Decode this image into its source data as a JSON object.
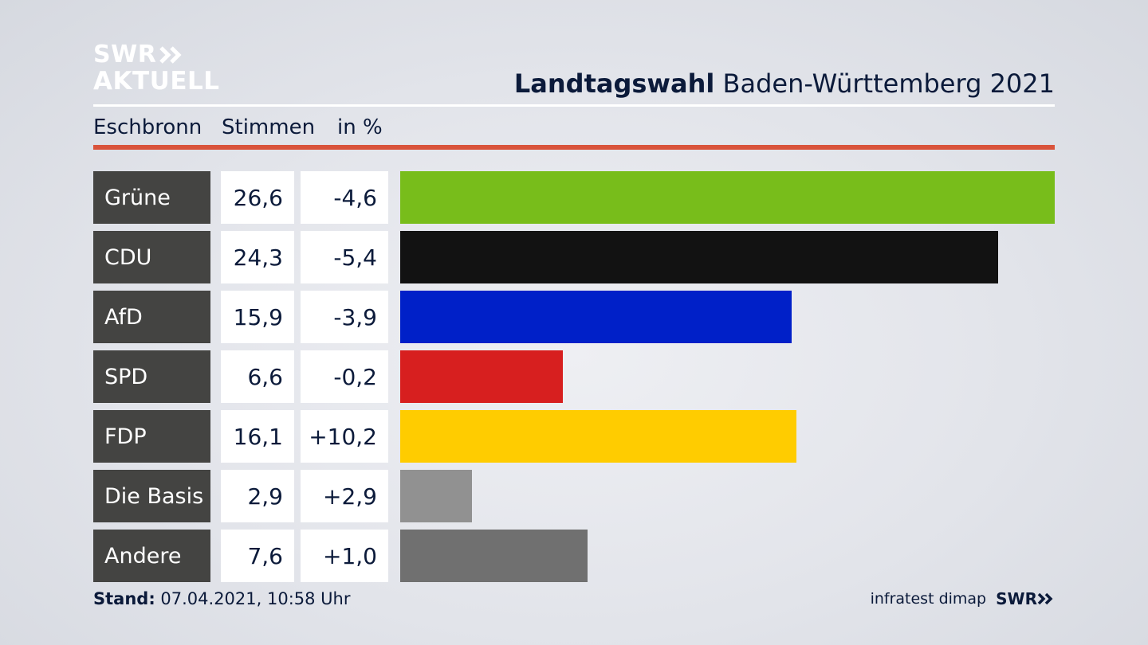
{
  "brand": {
    "line1": "SWR",
    "line2": "AKTUELL",
    "colors": {
      "logo": "#ffffff"
    }
  },
  "title": {
    "bold": "Landtagswahl",
    "rest": " Baden-Württemberg 2021"
  },
  "header": {
    "place": "Eschbronn",
    "votes": "Stimmen",
    "diff": "in %"
  },
  "chart_data": {
    "type": "bar",
    "categories": [
      "Grüne",
      "CDU",
      "AfD",
      "SPD",
      "FDP",
      "Die Basis",
      "Andere"
    ],
    "values": [
      26.6,
      24.3,
      15.9,
      6.6,
      16.1,
      2.9,
      7.6
    ],
    "value_labels": [
      "26,6",
      "24,3",
      "15,9",
      "6,6",
      "16,1",
      "2,9",
      "7,6"
    ],
    "diff_labels": [
      "-4,6",
      "-5,4",
      "-3,9",
      "-0,2",
      "+10,2",
      "+2,9",
      "+1,0"
    ],
    "colors": [
      "#78bd1b",
      "#121212",
      "#0020c8",
      "#d71f1f",
      "#ffcc00",
      "#919191",
      "#707070"
    ]
  },
  "footer": {
    "stand_label": "Stand:",
    "stand_value": " 07.04.2021, 10:58 Uhr",
    "source": "infratest dimap",
    "logo": "SWR"
  }
}
